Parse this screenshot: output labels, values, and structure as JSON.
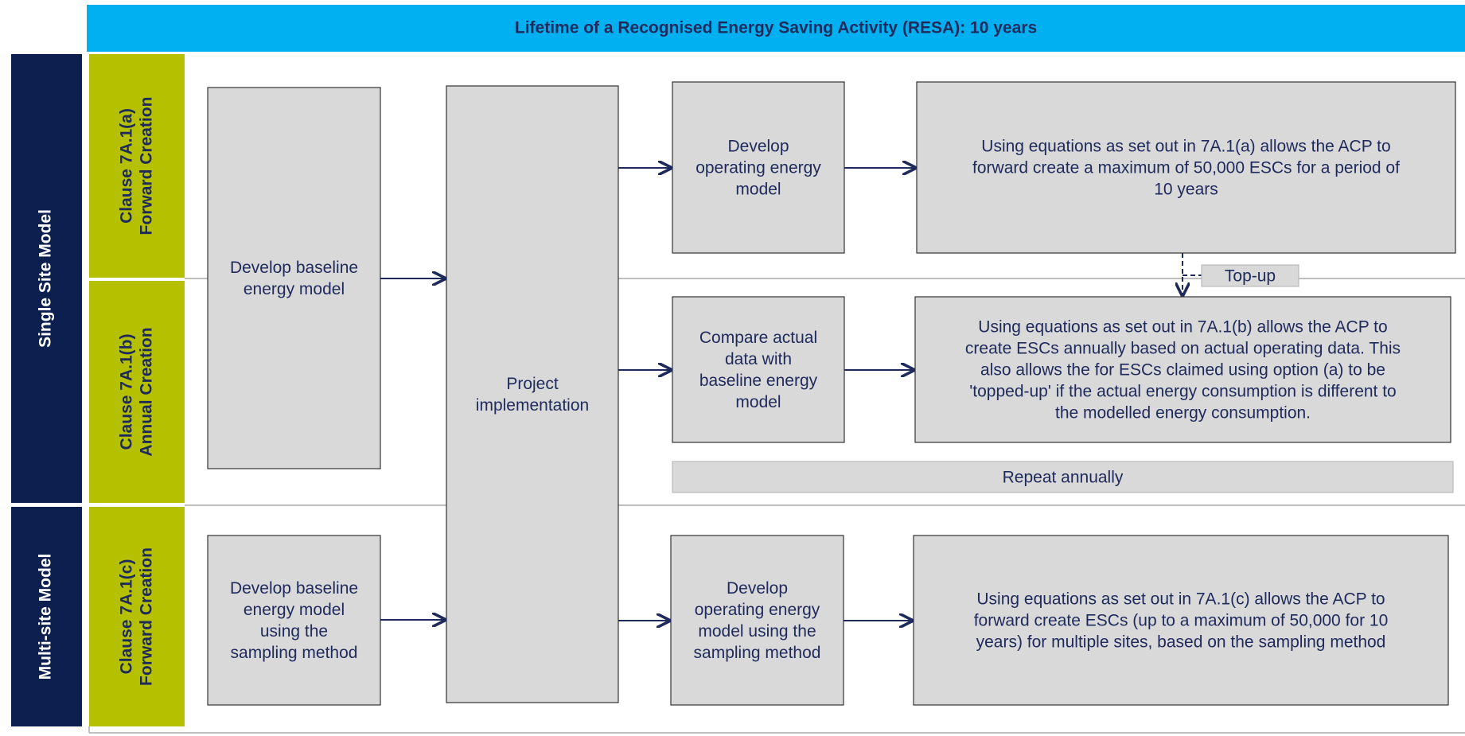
{
  "header": {
    "title": "Lifetime of a Recognised Energy Saving Activity (RESA): 10 years"
  },
  "models": [
    "Single Site Model",
    "Multi-site Model"
  ],
  "clauses": [
    [
      "Clause 7A.1(a)",
      "Forward Creation"
    ],
    [
      "Clause 7A.1(b)",
      "Annual Creation"
    ],
    [
      "Clause 7A.1(c)",
      "Forward Creation"
    ]
  ],
  "nodes": [
    {
      "label": [
        "Develop baseline",
        "energy model"
      ]
    },
    {
      "label": [
        "Project",
        "implementation"
      ]
    },
    {
      "label": [
        "Develop",
        "operating energy",
        "model"
      ]
    },
    {
      "label": [
        "Using equations as set out in 7A.1(a) allows the ACP to",
        "forward create a maximum of 50,000 ESCs for a period of",
        "10 years"
      ]
    },
    {
      "label": [
        "Compare actual",
        "data with",
        "baseline energy",
        "model"
      ]
    },
    {
      "label": [
        "Using equations as set out in 7A.1(b) allows the ACP to",
        "create ESCs annually based on actual operating data. This",
        "also allows the for ESCs claimed using option (a) to be",
        "'topped-up' if the actual energy consumption is different to",
        "the modelled energy consumption."
      ]
    },
    {
      "label": [
        "Repeat annually"
      ]
    },
    {
      "label": [
        "Develop baseline",
        "energy model",
        "using the",
        "sampling method"
      ]
    },
    {
      "label": [
        "Develop",
        "operating energy",
        "model using the",
        "sampling method"
      ]
    },
    {
      "label": [
        "Using equations as set out in 7A.1(c) allows the ACP to",
        "forward create ESCs (up to a maximum of 50,000 for 10",
        "years) for multiple sites, based on the sampling method"
      ]
    },
    {
      "label": [
        "Top-up"
      ]
    }
  ]
}
